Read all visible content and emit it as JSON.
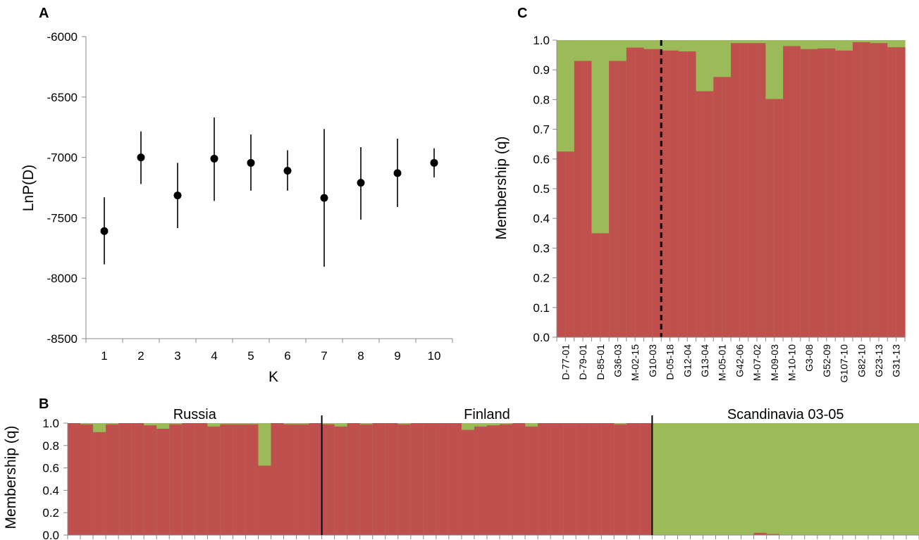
{
  "chart_data": [
    {
      "panel": "A",
      "type": "scatter",
      "xlabel": "K",
      "ylabel": "LnP(D)",
      "xticks": [
        "1",
        "2",
        "3",
        "4",
        "5",
        "6",
        "7",
        "8",
        "9",
        "10"
      ],
      "yticks": [
        "-6000",
        "-6500",
        "-7000",
        "-7500",
        "-8000",
        "-8500"
      ],
      "ylim": [
        -8500,
        -6000
      ],
      "grid": false,
      "points": [
        {
          "x": 1,
          "y": -7610,
          "low": -7885,
          "high": -7330
        },
        {
          "x": 2,
          "y": -7000,
          "low": -7220,
          "high": -6785
        },
        {
          "x": 3,
          "y": -7315,
          "low": -7585,
          "high": -7045
        },
        {
          "x": 4,
          "y": -7010,
          "low": -7360,
          "high": -6670
        },
        {
          "x": 5,
          "y": -7045,
          "low": -7275,
          "high": -6810
        },
        {
          "x": 6,
          "y": -7110,
          "low": -7275,
          "high": -6940
        },
        {
          "x": 7,
          "y": -7335,
          "low": -7905,
          "high": -6765
        },
        {
          "x": 8,
          "y": -7210,
          "low": -7515,
          "high": -6915
        },
        {
          "x": 9,
          "y": -7130,
          "low": -7410,
          "high": -6845
        },
        {
          "x": 10,
          "y": -7045,
          "low": -7165,
          "high": -6925
        }
      ]
    },
    {
      "panel": "B",
      "type": "bar",
      "stacked": true,
      "ylabel": "Membership (q)",
      "yticks": [
        "1.0",
        "0.8",
        "0.6",
        "0.4",
        "0.2",
        "0.0"
      ],
      "ylim": [
        0,
        1
      ],
      "groups": [
        {
          "label": "Russia",
          "count": 20
        },
        {
          "label": "Finland",
          "count": 26
        },
        {
          "label": "Scandinavia 03-05",
          "count": 21
        }
      ],
      "colors": {
        "red": "#c0504d",
        "green": "#9bbb59"
      },
      "red_values": [
        1.0,
        0.99,
        0.92,
        0.99,
        1.0,
        1.0,
        0.98,
        0.95,
        0.99,
        1.0,
        1.0,
        0.97,
        0.99,
        0.99,
        0.99,
        0.62,
        1.0,
        0.99,
        0.99,
        1.0,
        0.99,
        0.97,
        1.0,
        0.99,
        1.0,
        1.0,
        0.99,
        1.0,
        1.0,
        1.0,
        1.0,
        0.94,
        0.97,
        0.98,
        0.99,
        1.0,
        0.97,
        1.0,
        1.0,
        1.0,
        1.0,
        1.0,
        1.0,
        0.99,
        1.0,
        1.0,
        0.0,
        0.0,
        0.0,
        0.0,
        0.0,
        0.0,
        0.0,
        0.0,
        0.02,
        0.01,
        0.0,
        0.0,
        0.0,
        0.0,
        0.0,
        0.0,
        0.0,
        0.0,
        0.0,
        0.0,
        0.0
      ]
    },
    {
      "panel": "C",
      "type": "bar",
      "stacked": true,
      "ylabel": "Membership (q)",
      "yticks": [
        "1.0",
        "0.9",
        "0.8",
        "0.7",
        "0.6",
        "0.5",
        "0.4",
        "0.3",
        "0.2",
        "0.1",
        "0.0"
      ],
      "ylim": [
        0,
        1
      ],
      "colors": {
        "red": "#c0504d",
        "green": "#9bbb59"
      },
      "categories": [
        "D-77-01",
        "D-79-01",
        "D-85-01",
        "G36-03",
        "M-02-15",
        "G10-03",
        "D-05-18",
        "G12-04",
        "G13-04",
        "M-05-01",
        "G42-06",
        "M-07-02",
        "M-09-03",
        "M-10-10",
        "G3-08",
        "G52-09",
        "G107-10",
        "G82-10",
        "G23-13",
        "G31-13"
      ],
      "tick_labels": [
        "D-77-01",
        "D-79-01",
        "D-85-01",
        "G36-03",
        "M-02-15",
        "G10-03",
        "D-05-18",
        "G12-04",
        "G13-04",
        "M-05-01",
        "G42-06",
        "M-07-02",
        "M-09-03",
        "M-10-10",
        "G3-08",
        "G52-09",
        "G107-10",
        "G82-10",
        "G23-13",
        "G31-13"
      ],
      "red_values": [
        0.625,
        0.625,
        0.93,
        0.93,
        0.35,
        0.35,
        0.93,
        0.93,
        0.975,
        0.975,
        0.97,
        0.97,
        0.965,
        0.965,
        0.962,
        0.962,
        0.828,
        0.828,
        0.876,
        0.876,
        0.99,
        0.99,
        0.99,
        0.99,
        0.802,
        0.802,
        0.98,
        0.98,
        0.97,
        0.97,
        0.972,
        0.972,
        0.965,
        0.965,
        0.993,
        0.993,
        0.99,
        0.99,
        0.976,
        0.976
      ],
      "divider_after_index": 6
    }
  ]
}
